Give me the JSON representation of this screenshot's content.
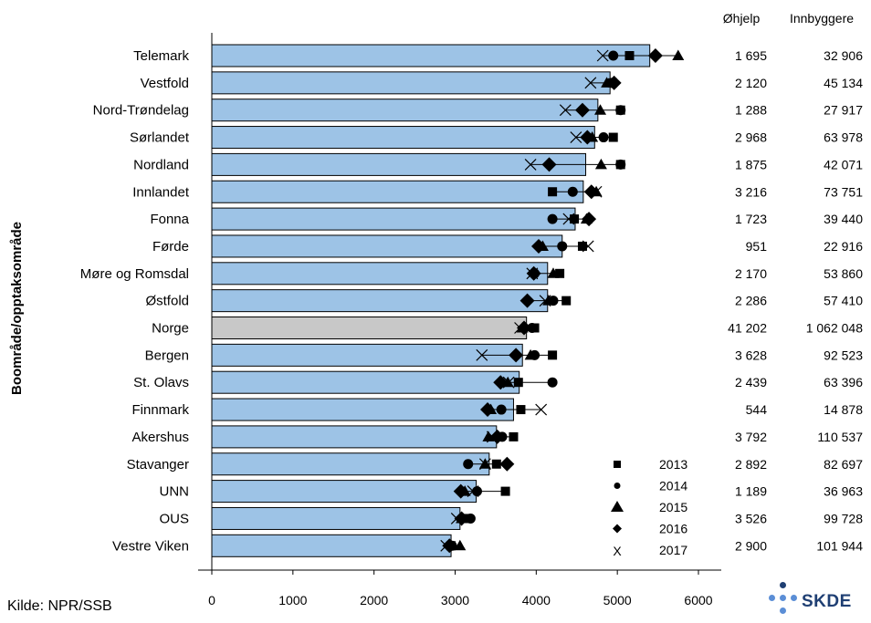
{
  "chart_data": {
    "type": "bar",
    "orientation": "horizontal",
    "ylabel": "Boområde/opptaksområde",
    "xlim": [
      0,
      6000
    ],
    "x_ticks": [
      "0",
      "1000",
      "2000",
      "3000",
      "4000",
      "5000",
      "6000"
    ],
    "categories": [
      "Telemark",
      "Vestfold",
      "Nord-Trøndelag",
      "Sørlandet",
      "Nordland",
      "Innlandet",
      "Fonna",
      "Førde",
      "Møre og Romsdal",
      "Østfold",
      "Norge",
      "Bergen",
      "St. Olavs",
      "Finnmark",
      "Akershus",
      "Stavanger",
      "UNN",
      "OUS",
      "Vestre Viken"
    ],
    "highlight_category": "Norge",
    "bar_color": "#9dc3e6",
    "highlight_color": "#c8c8c8",
    "bar_values": [
      5400,
      4910,
      4760,
      4720,
      4610,
      4580,
      4480,
      4320,
      4140,
      4140,
      3880,
      3830,
      3790,
      3720,
      3510,
      3420,
      3260,
      3060,
      2950
    ],
    "series": [
      {
        "name": "2013",
        "marker": "square",
        "values": [
          5150,
          4940,
          5040,
          4950,
          5040,
          4200,
          4470,
          4570,
          4290,
          4370,
          3980,
          4200,
          3780,
          3810,
          3720,
          3510,
          3620,
          3160,
          2950
        ]
      },
      {
        "name": "2014",
        "marker": "circle",
        "values": [
          4950,
          4930,
          5040,
          4830,
          5040,
          4450,
          4200,
          4320,
          3980,
          4210,
          3950,
          3980,
          4200,
          3570,
          3580,
          3160,
          3270,
          3190,
          2960
        ]
      },
      {
        "name": "2015",
        "marker": "triangle",
        "values": [
          5750,
          4870,
          4790,
          4690,
          4800,
          4740,
          4620,
          4080,
          4210,
          4150,
          3830,
          3930,
          3650,
          3440,
          3410,
          3370,
          3120,
          3080,
          3060
        ]
      },
      {
        "name": "2016",
        "marker": "diamond",
        "values": [
          5470,
          4960,
          4570,
          4630,
          4160,
          4680,
          4650,
          4030,
          3970,
          3890,
          3850,
          3750,
          3560,
          3400,
          3520,
          3640,
          3070,
          3080,
          2930
        ]
      },
      {
        "name": "2017",
        "marker": "x",
        "values": [
          4820,
          4670,
          4360,
          4490,
          3930,
          4740,
          4400,
          4640,
          3950,
          4110,
          3800,
          3330,
          3660,
          4060,
          3460,
          3370,
          3220,
          3020,
          2890
        ]
      }
    ],
    "legend": {
      "position": "bottom-right"
    },
    "table": {
      "headers": [
        "Øhjelp",
        "Innbyggere"
      ],
      "rows": [
        [
          "1 695",
          "32 906"
        ],
        [
          "2 120",
          "45 134"
        ],
        [
          "1 288",
          "27 917"
        ],
        [
          "2 968",
          "63 978"
        ],
        [
          "1 875",
          "42 071"
        ],
        [
          "3 216",
          "73 751"
        ],
        [
          "1 723",
          "39 440"
        ],
        [
          "951",
          "22 916"
        ],
        [
          "2 170",
          "53 860"
        ],
        [
          "2 286",
          "57 410"
        ],
        [
          "41 202",
          "1 062 048"
        ],
        [
          "3 628",
          "92 523"
        ],
        [
          "2 439",
          "63 396"
        ],
        [
          "544",
          "14 878"
        ],
        [
          "3 792",
          "110 537"
        ],
        [
          "2 892",
          "82 697"
        ],
        [
          "1 189",
          "36 963"
        ],
        [
          "3 526",
          "99 728"
        ],
        [
          "2 900",
          "101 944"
        ]
      ]
    }
  },
  "source": "Kilde: NPR/SSB",
  "logo_text": "SKDE",
  "colors": {
    "logo_dots": "#1f3f73",
    "logo_light": "#5b8ed6"
  }
}
